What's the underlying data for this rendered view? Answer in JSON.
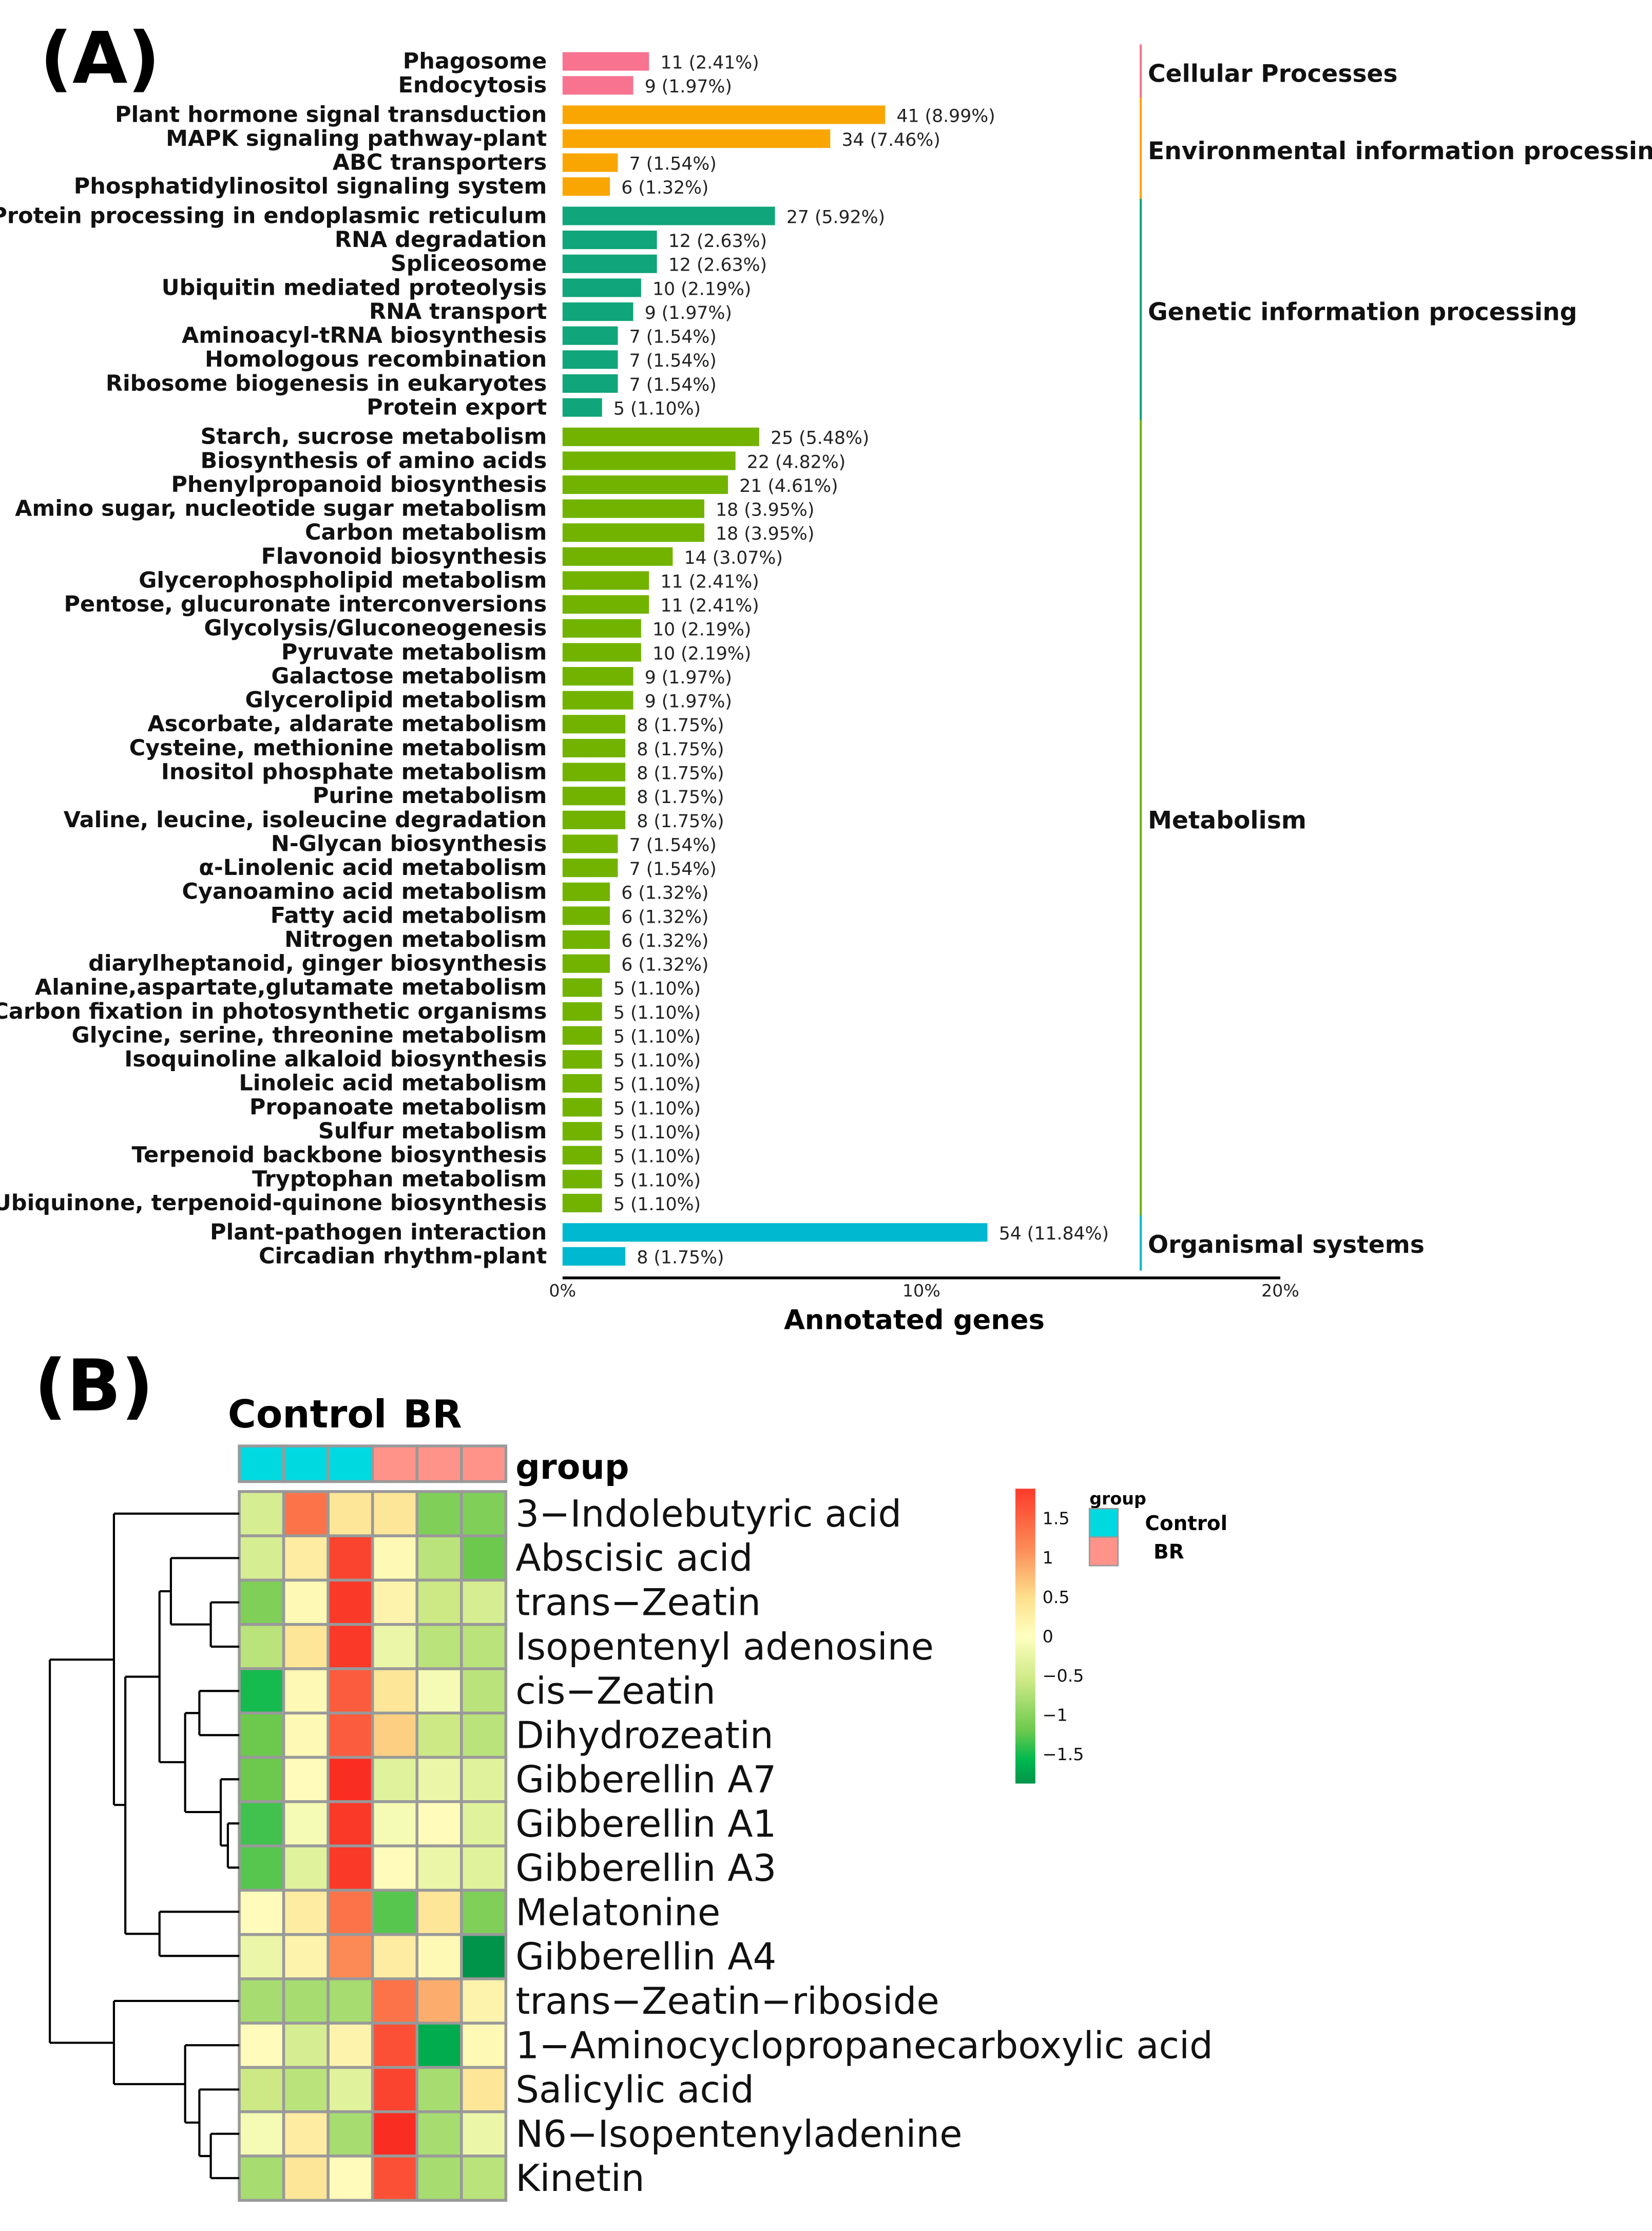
{
  "chart_data": [
    {
      "type": "bar",
      "orientation": "horizontal",
      "panel_label": "(A)",
      "xlabel": "Annotated genes",
      "xlim": [
        0,
        20
      ],
      "xticks": [
        "0%",
        "10%",
        "20%"
      ],
      "groups": [
        {
          "name": "Cellular Processes",
          "color": "#f7738f",
          "items": [
            {
              "label": "Phagosome",
              "count": 11,
              "pct": 2.41
            },
            {
              "label": "Endocytosis",
              "count": 9,
              "pct": 1.97
            }
          ]
        },
        {
          "name": "Environmental information processing",
          "color": "#f9a602",
          "items": [
            {
              "label": "Plant hormone signal transduction",
              "count": 41,
              "pct": 8.99
            },
            {
              "label": "MAPK signaling pathway-plant",
              "count": 34,
              "pct": 7.46
            },
            {
              "label": "ABC transporters",
              "count": 7,
              "pct": 1.54
            },
            {
              "label": "Phosphatidylinositol signaling system",
              "count": 6,
              "pct": 1.32
            }
          ]
        },
        {
          "name": "Genetic information processing",
          "color": "#10a57a",
          "items": [
            {
              "label": "Protein processing in endoplasmic reticulum",
              "count": 27,
              "pct": 5.92
            },
            {
              "label": "RNA degradation",
              "count": 12,
              "pct": 2.63
            },
            {
              "label": "Spliceosome",
              "count": 12,
              "pct": 2.63
            },
            {
              "label": "Ubiquitin mediated proteolysis",
              "count": 10,
              "pct": 2.19
            },
            {
              "label": "RNA transport",
              "count": 9,
              "pct": 1.97
            },
            {
              "label": "Aminoacyl-tRNA biosynthesis",
              "count": 7,
              "pct": 1.54
            },
            {
              "label": "Homologous recombination",
              "count": 7,
              "pct": 1.54
            },
            {
              "label": "Ribosome biogenesis in eukaryotes",
              "count": 7,
              "pct": 1.54
            },
            {
              "label": "Protein export",
              "count": 5,
              "pct": 1.1
            }
          ]
        },
        {
          "name": "Metabolism",
          "color": "#72b300",
          "items": [
            {
              "label": "Starch, sucrose metabolism",
              "count": 25,
              "pct": 5.48
            },
            {
              "label": "Biosynthesis of amino acids",
              "count": 22,
              "pct": 4.82
            },
            {
              "label": "Phenylpropanoid biosynthesis",
              "count": 21,
              "pct": 4.61
            },
            {
              "label": "Amino sugar, nucleotide sugar metabolism",
              "count": 18,
              "pct": 3.95
            },
            {
              "label": "Carbon metabolism",
              "count": 18,
              "pct": 3.95
            },
            {
              "label": "Flavonoid biosynthesis",
              "count": 14,
              "pct": 3.07
            },
            {
              "label": "Glycerophospholipid metabolism",
              "count": 11,
              "pct": 2.41
            },
            {
              "label": "Pentose, glucuronate interconversions",
              "count": 11,
              "pct": 2.41
            },
            {
              "label": "Glycolysis/Gluconeogenesis",
              "count": 10,
              "pct": 2.19
            },
            {
              "label": "Pyruvate metabolism",
              "count": 10,
              "pct": 2.19
            },
            {
              "label": "Galactose metabolism",
              "count": 9,
              "pct": 1.97
            },
            {
              "label": "Glycerolipid metabolism",
              "count": 9,
              "pct": 1.97
            },
            {
              "label": "Ascorbate, aldarate metabolism",
              "count": 8,
              "pct": 1.75
            },
            {
              "label": "Cysteine, methionine metabolism",
              "count": 8,
              "pct": 1.75
            },
            {
              "label": "Inositol phosphate metabolism",
              "count": 8,
              "pct": 1.75
            },
            {
              "label": "Purine metabolism",
              "count": 8,
              "pct": 1.75
            },
            {
              "label": "Valine, leucine, isoleucine degradation",
              "count": 8,
              "pct": 1.75
            },
            {
              "label": "N-Glycan biosynthesis",
              "count": 7,
              "pct": 1.54
            },
            {
              "label": "α-Linolenic acid metabolism",
              "count": 7,
              "pct": 1.54
            },
            {
              "label": "Cyanoamino acid metabolism",
              "count": 6,
              "pct": 1.32
            },
            {
              "label": "Fatty acid metabolism",
              "count": 6,
              "pct": 1.32
            },
            {
              "label": "Nitrogen metabolism",
              "count": 6,
              "pct": 1.32
            },
            {
              "label": "diarylheptanoid, ginger biosynthesis",
              "count": 6,
              "pct": 1.32
            },
            {
              "label": "Alanine,aspartate,glutamate metabolism",
              "count": 5,
              "pct": 1.1
            },
            {
              "label": "Carbon fixation in photosynthetic organisms",
              "count": 5,
              "pct": 1.1
            },
            {
              "label": "Glycine, serine, threonine metabolism",
              "count": 5,
              "pct": 1.1
            },
            {
              "label": "Isoquinoline alkaloid biosynthesis",
              "count": 5,
              "pct": 1.1
            },
            {
              "label": "Linoleic acid metabolism",
              "count": 5,
              "pct": 1.1
            },
            {
              "label": "Propanoate metabolism",
              "count": 5,
              "pct": 1.1
            },
            {
              "label": "Sulfur metabolism",
              "count": 5,
              "pct": 1.1
            },
            {
              "label": "Terpenoid backbone biosynthesis",
              "count": 5,
              "pct": 1.1
            },
            {
              "label": "Tryptophan metabolism",
              "count": 5,
              "pct": 1.1
            },
            {
              "label": "Ubiquinone, terpenoid-quinone  biosynthesis",
              "count": 5,
              "pct": 1.1
            }
          ]
        },
        {
          "name": "Organismal systems",
          "color": "#00b8cf",
          "items": [
            {
              "label": "Plant-pathogen interaction",
              "count": 54,
              "pct": 11.84
            },
            {
              "label": "Circadian rhythm-plant",
              "count": 8,
              "pct": 1.75
            }
          ]
        }
      ]
    },
    {
      "type": "heatmap",
      "panel_label": "(B)",
      "column_groups": [
        {
          "name": "Control",
          "color": "#00d9e0",
          "columns": 3
        },
        {
          "name": "BR",
          "color": "#ff938a",
          "columns": 3
        }
      ],
      "annotation_title": "group",
      "rows": [
        {
          "label": "3−Indolebutyric acid",
          "values": [
            -0.4,
            1.2,
            0.4,
            0.4,
            -0.9,
            -0.9
          ]
        },
        {
          "label": "Abscisic acid",
          "values": [
            -0.4,
            0.3,
            1.6,
            0.1,
            -0.6,
            -1.0
          ]
        },
        {
          "label": "trans−Zeatin",
          "values": [
            -0.9,
            0.1,
            1.7,
            0.2,
            -0.5,
            -0.4
          ]
        },
        {
          "label": "Isopentenyl adenosine",
          "values": [
            -0.6,
            0.4,
            1.7,
            -0.2,
            -0.6,
            -0.6
          ]
        },
        {
          "label": "cis−Zeatin",
          "values": [
            -1.4,
            0.1,
            1.4,
            0.4,
            -0.1,
            -0.6
          ]
        },
        {
          "label": "Dihydrozeatin",
          "values": [
            -1.0,
            0.1,
            1.4,
            0.6,
            -0.5,
            -0.6
          ]
        },
        {
          "label": "Gibberellin A7",
          "values": [
            -1.0,
            0.05,
            1.8,
            -0.3,
            -0.2,
            -0.3
          ]
        },
        {
          "label": "Gibberellin A1",
          "values": [
            -1.2,
            -0.1,
            1.7,
            -0.1,
            0.05,
            -0.3
          ]
        },
        {
          "label": "Gibberellin A3",
          "values": [
            -1.1,
            -0.3,
            1.7,
            0.05,
            -0.2,
            -0.3
          ]
        },
        {
          "label": "Melatonine",
          "values": [
            0.05,
            0.3,
            1.2,
            -1.1,
            0.4,
            -0.9
          ]
        },
        {
          "label": "Gibberellin A4",
          "values": [
            -0.2,
            0.2,
            1.0,
            0.3,
            0.1,
            -1.9
          ]
        },
        {
          "label": "trans−Zeatin−riboside",
          "values": [
            -0.7,
            -0.7,
            -0.7,
            1.2,
            0.8,
            0.2
          ]
        },
        {
          "label": "1−Aminocyclopropanecarboxylic acid",
          "values": [
            0.05,
            -0.4,
            0.2,
            1.5,
            -1.6,
            0.1
          ]
        },
        {
          "label": "Salicylic acid",
          "values": [
            -0.5,
            -0.6,
            -0.3,
            1.6,
            -0.7,
            0.4
          ]
        },
        {
          "label": "N6−Isopentenyladenine",
          "values": [
            -0.1,
            0.3,
            -0.7,
            1.8,
            -0.7,
            -0.2
          ]
        },
        {
          "label": "Kinetin",
          "values": [
            -0.7,
            0.4,
            0.05,
            1.5,
            -0.7,
            -0.6
          ]
        }
      ],
      "colorbar": {
        "ticks": [
          "1.5",
          "1",
          "0.5",
          "0",
          "−0.5",
          "−1",
          "−1.5"
        ],
        "range": [
          -1.8,
          1.8
        ]
      },
      "legend": {
        "title": "group",
        "items": [
          "Control",
          "BR"
        ]
      }
    }
  ]
}
